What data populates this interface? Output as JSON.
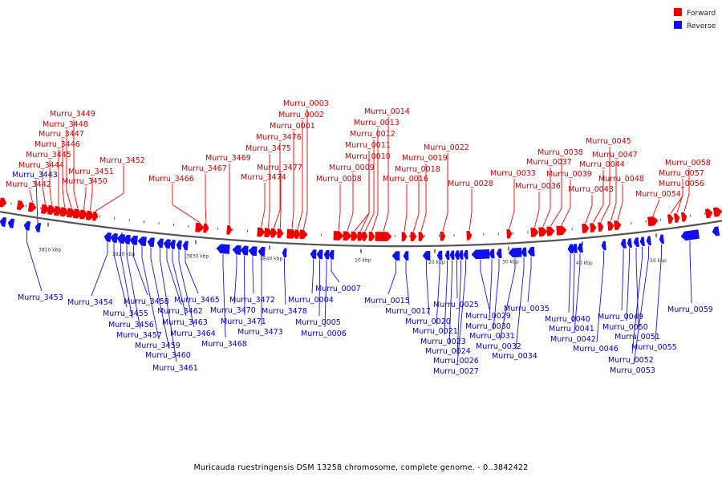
{
  "colors": {
    "forward": "#ee0000",
    "reverse": "#1111ee",
    "axis": "#555555"
  },
  "legend": [
    {
      "key": "forward",
      "label": "Forward"
    },
    {
      "key": "reverse",
      "label": "Reverse"
    }
  ],
  "caption": "Muricauda ruestringensis DSM 13258 chromosome, complete genome. - 0..3842422",
  "ticks": [
    {
      "label": "3810 kbp",
      "major": true
    },
    {
      "label": "3820 kbp",
      "major": true
    },
    {
      "label": "3830 kbp",
      "major": true
    },
    {
      "label": "3840 kbp",
      "major": true
    },
    {
      "label": "10 kbp",
      "major": true
    },
    {
      "label": "20 kbp",
      "major": true
    },
    {
      "label": "30 kbp",
      "major": true
    },
    {
      "label": "40 kbp",
      "major": true
    },
    {
      "label": "50 kbp",
      "major": true
    }
  ],
  "forward_genes": [
    {
      "name": "Murru_3442",
      "len": 9
    },
    {
      "name": "Murru_3444",
      "len": 9
    },
    {
      "name": "Murru_3445",
      "len": 9
    },
    {
      "name": "Murru_3446",
      "len": 10
    },
    {
      "name": "Murru_3447",
      "len": 9
    },
    {
      "name": "Murru_3448",
      "len": 10
    },
    {
      "name": "Murru_3449",
      "len": 10
    },
    {
      "name": "Murru_3450",
      "len": 9
    },
    {
      "name": "Murru_3451",
      "len": 9
    },
    {
      "name": "Murru_3452",
      "len": 6
    },
    {
      "name": "Murru_3466",
      "len": 10
    },
    {
      "name": "Murru_3467",
      "len": 6
    },
    {
      "name": "Murru_3469",
      "len": 6
    },
    {
      "name": "Murru_3474",
      "len": 9
    },
    {
      "name": "Murru_3475",
      "len": 9
    },
    {
      "name": "Murru_3476",
      "len": 7
    },
    {
      "name": "Murru_3477",
      "len": 7
    },
    {
      "name": "Murru_0001",
      "len": 12
    },
    {
      "name": "Murru_0002",
      "len": 6
    },
    {
      "name": "Murru_0003",
      "len": 9
    },
    {
      "name": "Murru_0008",
      "len": 12
    },
    {
      "name": "Murru_0009",
      "len": 10
    },
    {
      "name": "Murru_0010",
      "len": 8
    },
    {
      "name": "Murru_0011",
      "len": 7
    },
    {
      "name": "Murru_0012",
      "len": 6
    },
    {
      "name": "Murru_0013",
      "len": 7
    },
    {
      "name": "Murru_0014",
      "len": 20
    },
    {
      "name": "Murru_0016",
      "len": 6
    },
    {
      "name": "Murru_0018",
      "len": 7
    },
    {
      "name": "Murru_0019",
      "len": 6
    },
    {
      "name": "Murru_0022",
      "len": 6
    },
    {
      "name": "Murru_0028",
      "len": 6
    },
    {
      "name": "Murru_0033",
      "len": 6
    },
    {
      "name": "Murru_0036",
      "len": 9
    },
    {
      "name": "Murru_0037",
      "len": 10
    },
    {
      "name": "Murru_0038",
      "len": 9
    },
    {
      "name": "Murru_0039",
      "len": 12
    },
    {
      "name": "Murru_0043",
      "len": 8
    },
    {
      "name": "Murru_0044",
      "len": 7
    },
    {
      "name": "Murru_0045",
      "len": 6
    },
    {
      "name": "Murru_0047",
      "len": 7
    },
    {
      "name": "Murru_0048",
      "len": 8
    },
    {
      "name": "Murru_0054",
      "len": 12
    },
    {
      "name": "Murru_0056",
      "len": 6
    },
    {
      "name": "Murru_0057",
      "len": 6
    },
    {
      "name": "Murru_0058",
      "len": 6
    }
  ],
  "reverse_genes": [
    {
      "name": "Murru_3443",
      "len": 6
    },
    {
      "name": "Murru_3453",
      "len": 7
    },
    {
      "name": "Murru_3454",
      "len": 8
    },
    {
      "name": "Murru_3455",
      "len": 8
    },
    {
      "name": "Murru_3456",
      "len": 9
    },
    {
      "name": "Murru_3457",
      "len": 8
    },
    {
      "name": "Murru_3458",
      "len": 9
    },
    {
      "name": "Murru_3459",
      "len": 10
    },
    {
      "name": "Murru_3460",
      "len": 8
    },
    {
      "name": "Murru_3461",
      "len": 7
    },
    {
      "name": "Murru_3462",
      "len": 8
    },
    {
      "name": "Murru_3463",
      "len": 6
    },
    {
      "name": "Murru_3464",
      "len": 6
    },
    {
      "name": "Murru_3465",
      "len": 6
    },
    {
      "name": "Murru_3468",
      "len": 16
    },
    {
      "name": "Murru_3470",
      "len": 10
    },
    {
      "name": "Murru_3471",
      "len": 9
    },
    {
      "name": "Murru_3472",
      "len": 10
    },
    {
      "name": "Murru_3473",
      "len": 8
    },
    {
      "name": "Murru_3478",
      "len": 5
    },
    {
      "name": "Murru_0004",
      "len": 7
    },
    {
      "name": "Murru_0005",
      "len": 7
    },
    {
      "name": "Murru_0006",
      "len": 6
    },
    {
      "name": "Murru_0007",
      "len": 6
    },
    {
      "name": "Murru_0015",
      "len": 9
    },
    {
      "name": "Murru_0017",
      "len": 6
    },
    {
      "name": "Murru_0020",
      "len": 9
    },
    {
      "name": "Murru_0021",
      "len": 6
    },
    {
      "name": "Murru_0023",
      "len": 5
    },
    {
      "name": "Murru_0024",
      "len": 5
    },
    {
      "name": "Murru_0025",
      "len": 5
    },
    {
      "name": "Murru_0026",
      "len": 5
    },
    {
      "name": "Murru_0027",
      "len": 5
    },
    {
      "name": "Murru_0029",
      "len": 22
    },
    {
      "name": "Murru_0030",
      "len": 6
    },
    {
      "name": "Murru_0031",
      "len": 6
    },
    {
      "name": "Murru_0032",
      "len": 16
    },
    {
      "name": "Murru_0034",
      "len": 6
    },
    {
      "name": "Murru_0035",
      "len": 8
    },
    {
      "name": "Murru_0040",
      "len": 6
    },
    {
      "name": "Murru_0041",
      "len": 6
    },
    {
      "name": "Murru_0042",
      "len": 6
    },
    {
      "name": "Murru_0046",
      "len": 5
    },
    {
      "name": "Murru_0049",
      "len": 6
    },
    {
      "name": "Murru_0050",
      "len": 5
    },
    {
      "name": "Murru_0051",
      "len": 6
    },
    {
      "name": "Murru_0052",
      "len": 5
    },
    {
      "name": "Murru_0053",
      "len": 5
    },
    {
      "name": "Murru_0055",
      "len": 5
    },
    {
      "name": "Murru_0059",
      "len": 22
    }
  ]
}
